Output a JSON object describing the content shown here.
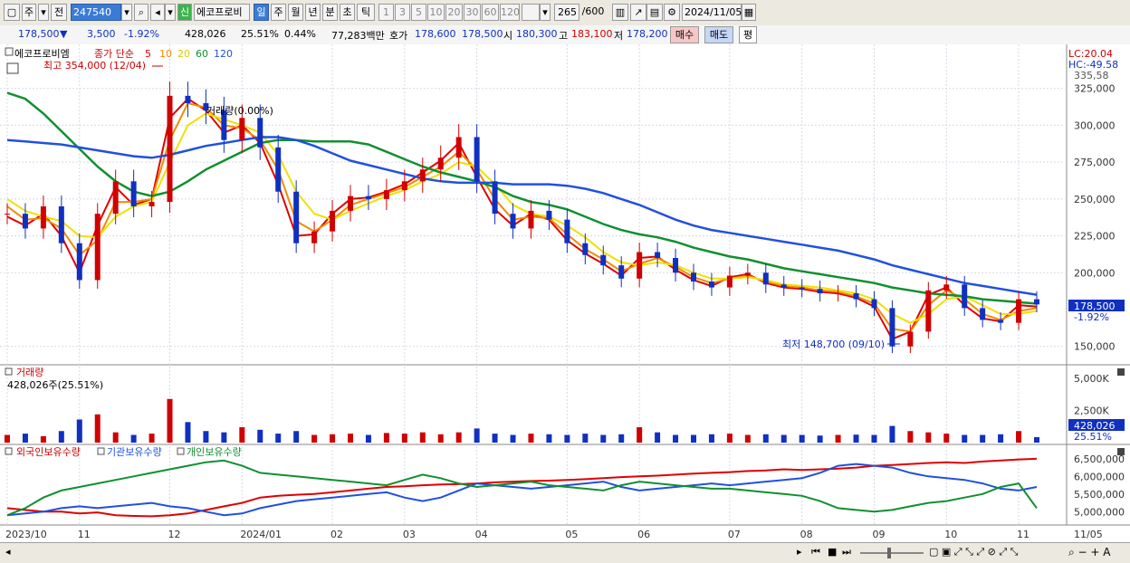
{
  "toolbar": {
    "period_sel": "주",
    "prev_label": "전",
    "code": "247540",
    "badge": "신",
    "name": "에코프로비",
    "periods": [
      "일",
      "주",
      "월",
      "년",
      "분",
      "초",
      "틱"
    ],
    "active_period": "일",
    "intervals": [
      "1",
      "3",
      "5",
      "10",
      "20",
      "30",
      "60",
      "120"
    ],
    "count": "265",
    "total": "/600",
    "date": "2024/11/05"
  },
  "quote": {
    "price": "178,500",
    "change": "3,500",
    "change_pct": "-1.92%",
    "volume": "428,026",
    "vol_ratio": "25.51%",
    "turnover": "0.44%",
    "amount": "77,283백만",
    "ask_label": "호가",
    "ask": "178,600",
    "bid": "178,500",
    "open_label": "시",
    "open": "180,300",
    "high_label": "고",
    "high": "183,100",
    "low_label": "저",
    "low": "178,200",
    "buy": "매수",
    "sell": "매도",
    "eval": "평"
  },
  "colors": {
    "up": "#d00000",
    "down": "#1030c0",
    "ma5": "#e00000",
    "ma10": "#f08c00",
    "ma20": "#f0e000",
    "ma60": "#109030",
    "ma120": "#2050e0"
  },
  "chart_data": [
    {
      "type": "line",
      "name_label": "에코프로비엠",
      "legend_title": "종가 단순",
      "ma_legend": [
        "5",
        "10",
        "20",
        "60",
        "120"
      ],
      "lc": "LC:20.04",
      "hc": "HC:-49.58",
      "high_annotation": "최고 354,000 (12/04)",
      "low_annotation": "최저 148,700 (09/10)",
      "vol_annotation": "거래량(0.00%)",
      "price_tag": "178,500",
      "pct_tag": "-1.92%",
      "y_ticks": [
        "325,000",
        "300,000",
        "275,000",
        "250,000",
        "225,000",
        "200,000",
        "150,000"
      ],
      "top_tick_partial": "335,58",
      "ylim": [
        140000,
        350000
      ],
      "dates": [
        "2023-10-04",
        "2023-10-11",
        "2023-10-18",
        "2023-10-25",
        "2023-11-01",
        "2023-11-08",
        "2023-11-15",
        "2023-11-22",
        "2023-11-29",
        "2023-12-04",
        "2023-12-11",
        "2023-12-18",
        "2023-12-26",
        "2024-01-02",
        "2024-01-09",
        "2024-01-16",
        "2024-01-23",
        "2024-01-30",
        "2024-02-06",
        "2024-02-14",
        "2024-02-21",
        "2024-02-28",
        "2024-03-06",
        "2024-03-13",
        "2024-03-20",
        "2024-03-27",
        "2024-04-03",
        "2024-04-10",
        "2024-04-17",
        "2024-04-24",
        "2024-05-02",
        "2024-05-09",
        "2024-05-16",
        "2024-05-23",
        "2024-05-30",
        "2024-06-07",
        "2024-06-14",
        "2024-06-21",
        "2024-06-28",
        "2024-07-05",
        "2024-07-12",
        "2024-07-19",
        "2024-07-26",
        "2024-08-02",
        "2024-08-09",
        "2024-08-16",
        "2024-08-23",
        "2024-08-30",
        "2024-09-06",
        "2024-09-10",
        "2024-09-20",
        "2024-09-27",
        "2024-10-04",
        "2024-10-11",
        "2024-10-18",
        "2024-10-25",
        "2024-11-01",
        "2024-11-05"
      ],
      "close": [
        240000,
        230000,
        245000,
        220000,
        195000,
        240000,
        262000,
        245000,
        248000,
        320000,
        315000,
        310000,
        290000,
        305000,
        285000,
        255000,
        220000,
        228000,
        242000,
        252000,
        250000,
        256000,
        262000,
        270000,
        278000,
        292000,
        262000,
        240000,
        230000,
        242000,
        236000,
        220000,
        212000,
        205000,
        196000,
        214000,
        210000,
        200000,
        194000,
        190000,
        198000,
        200000,
        192000,
        190000,
        189000,
        186000,
        186000,
        182000,
        176000,
        150000,
        160000,
        188000,
        192000,
        176000,
        168000,
        166000,
        182000,
        178500
      ],
      "series": [
        {
          "name": "5",
          "values": [
            238000,
            232000,
            240000,
            225000,
            200000,
            232000,
            258000,
            246000,
            250000,
            305000,
            318000,
            310000,
            295000,
            300000,
            288000,
            260000,
            225000,
            226000,
            240000,
            250000,
            251000,
            255000,
            260000,
            268000,
            276000,
            288000,
            265000,
            243000,
            232000,
            240000,
            236000,
            222000,
            213000,
            206000,
            198000,
            210000,
            211000,
            202000,
            195000,
            191000,
            197000,
            199000,
            193000,
            190000,
            189000,
            187000,
            186000,
            183000,
            177000,
            155000,
            160000,
            185000,
            190000,
            178000,
            169000,
            167000,
            178000,
            177000
          ]
        },
        {
          "name": "10",
          "values": [
            245000,
            236000,
            237000,
            230000,
            212000,
            222000,
            248000,
            248000,
            250000,
            290000,
            315000,
            312000,
            300000,
            298000,
            290000,
            270000,
            235000,
            228000,
            236000,
            246000,
            250000,
            254000,
            258000,
            265000,
            272000,
            282000,
            270000,
            250000,
            236000,
            238000,
            237000,
            226000,
            216000,
            209000,
            201000,
            206000,
            210000,
            204000,
            197000,
            193000,
            196000,
            198000,
            194000,
            191000,
            190000,
            188000,
            187000,
            184000,
            179000,
            162000,
            160000,
            178000,
            188000,
            182000,
            172000,
            168000,
            174000,
            176000
          ]
        },
        {
          "name": "20",
          "values": [
            250000,
            242000,
            238000,
            235000,
            225000,
            224000,
            238000,
            245000,
            248000,
            275000,
            300000,
            308000,
            304000,
            300000,
            295000,
            280000,
            255000,
            240000,
            236000,
            242000,
            247000,
            252000,
            256000,
            262000,
            267000,
            275000,
            272000,
            260000,
            246000,
            240000,
            238000,
            232000,
            224000,
            214000,
            207000,
            205000,
            207000,
            205000,
            200000,
            196000,
            196000,
            197000,
            195000,
            192000,
            191000,
            190000,
            188000,
            186000,
            182000,
            172000,
            166000,
            172000,
            182000,
            184000,
            178000,
            172000,
            172000,
            174000
          ]
        },
        {
          "name": "60",
          "values": [
            322000,
            318000,
            308000,
            296000,
            284000,
            272000,
            262000,
            255000,
            252000,
            255000,
            262000,
            270000,
            276000,
            282000,
            288000,
            290000,
            290000,
            289000,
            289000,
            289000,
            287000,
            282000,
            277000,
            272000,
            268000,
            265000,
            262000,
            258000,
            252000,
            248000,
            246000,
            243000,
            238000,
            233000,
            229000,
            226000,
            224000,
            221000,
            217000,
            214000,
            211000,
            209000,
            206000,
            203000,
            201000,
            199000,
            197000,
            195000,
            193000,
            190000,
            188000,
            186000,
            185000,
            184000,
            182000,
            181000,
            180000,
            179000
          ]
        },
        {
          "name": "120",
          "values": [
            290000,
            289000,
            288000,
            287000,
            285000,
            283000,
            281000,
            279000,
            278000,
            280000,
            283000,
            286000,
            288000,
            290000,
            292000,
            292000,
            290000,
            286000,
            281000,
            276000,
            273000,
            270000,
            267000,
            264000,
            262000,
            261000,
            261000,
            261000,
            260000,
            260000,
            260000,
            259000,
            257000,
            254000,
            250000,
            246000,
            241000,
            236000,
            232000,
            229000,
            227000,
            225000,
            223000,
            221000,
            219000,
            217000,
            215000,
            212000,
            209000,
            205000,
            202000,
            199000,
            196000,
            193000,
            191000,
            189000,
            187000,
            185000
          ]
        }
      ]
    },
    {
      "type": "bar",
      "title": "거래량",
      "current": "428,026주(25.51%)",
      "y_ticks": [
        "5,000K",
        "2,500K"
      ],
      "tag_value": "428,026",
      "tag_pct": "25.51%",
      "values": [
        600,
        700,
        500,
        900,
        1800,
        2200,
        800,
        600,
        700,
        3400,
        1600,
        900,
        800,
        1200,
        1000,
        700,
        900,
        600,
        650,
        700,
        600,
        750,
        700,
        800,
        650,
        800,
        1100,
        700,
        600,
        700,
        650,
        600,
        700,
        600,
        650,
        1200,
        800,
        600,
        600,
        650,
        700,
        600,
        650,
        600,
        600,
        550,
        600,
        620,
        600,
        1300,
        900,
        800,
        700,
        600,
        600,
        650,
        900,
        428
      ]
    },
    {
      "type": "line",
      "legend": [
        "외국인보유수량",
        "기관보유수량",
        "개인보유수량"
      ],
      "y_ticks": [
        "6,500,000",
        "6,000,000",
        "5,500,000",
        "5,000,000"
      ],
      "ylim": [
        4700000,
        6700000
      ],
      "series": [
        {
          "name": "외국인보유수량",
          "values": [
            5100000,
            5050000,
            5000000,
            5000000,
            4950000,
            4980000,
            4900000,
            4880000,
            4870000,
            4900000,
            4950000,
            5050000,
            5150000,
            5250000,
            5400000,
            5450000,
            5480000,
            5500000,
            5550000,
            5600000,
            5650000,
            5700000,
            5720000,
            5750000,
            5770000,
            5780000,
            5800000,
            5830000,
            5850000,
            5870000,
            5880000,
            5900000,
            5920000,
            5950000,
            5980000,
            6000000,
            6020000,
            6050000,
            6080000,
            6100000,
            6120000,
            6150000,
            6170000,
            6200000,
            6180000,
            6200000,
            6220000,
            6250000,
            6300000,
            6320000,
            6350000,
            6380000,
            6400000,
            6380000,
            6420000,
            6450000,
            6480000,
            6500000
          ]
        },
        {
          "name": "기관보유수량",
          "values": [
            4900000,
            4950000,
            5000000,
            5100000,
            5150000,
            5100000,
            5150000,
            5200000,
            5250000,
            5150000,
            5100000,
            5000000,
            4900000,
            4950000,
            5100000,
            5200000,
            5300000,
            5350000,
            5400000,
            5450000,
            5500000,
            5550000,
            5400000,
            5300000,
            5400000,
            5600000,
            5800000,
            5750000,
            5700000,
            5650000,
            5700000,
            5750000,
            5800000,
            5850000,
            5700000,
            5600000,
            5650000,
            5700000,
            5750000,
            5800000,
            5750000,
            5800000,
            5850000,
            5900000,
            5950000,
            6100000,
            6300000,
            6350000,
            6300000,
            6250000,
            6100000,
            6000000,
            5950000,
            5900000,
            5800000,
            5650000,
            5600000,
            5700000
          ]
        },
        {
          "name": "개인보유수량",
          "values": [
            4900000,
            5100000,
            5400000,
            5600000,
            5700000,
            5800000,
            5900000,
            6000000,
            6100000,
            6200000,
            6300000,
            6400000,
            6450000,
            6300000,
            6100000,
            6050000,
            6000000,
            5950000,
            5900000,
            5850000,
            5800000,
            5750000,
            5900000,
            6050000,
            5950000,
            5800000,
            5700000,
            5750000,
            5800000,
            5850000,
            5750000,
            5700000,
            5650000,
            5600000,
            5750000,
            5850000,
            5800000,
            5750000,
            5700000,
            5650000,
            5650000,
            5600000,
            5550000,
            5500000,
            5450000,
            5300000,
            5100000,
            5050000,
            5000000,
            5050000,
            5150000,
            5250000,
            5300000,
            5400000,
            5500000,
            5700000,
            5800000,
            5100000
          ]
        }
      ]
    }
  ],
  "x_axis_labels": [
    "2023/10",
    "11",
    "12",
    "2024/01",
    "02",
    "03",
    "04",
    "05",
    "06",
    "07",
    "08",
    "09",
    "10",
    "11",
    "11/05"
  ]
}
